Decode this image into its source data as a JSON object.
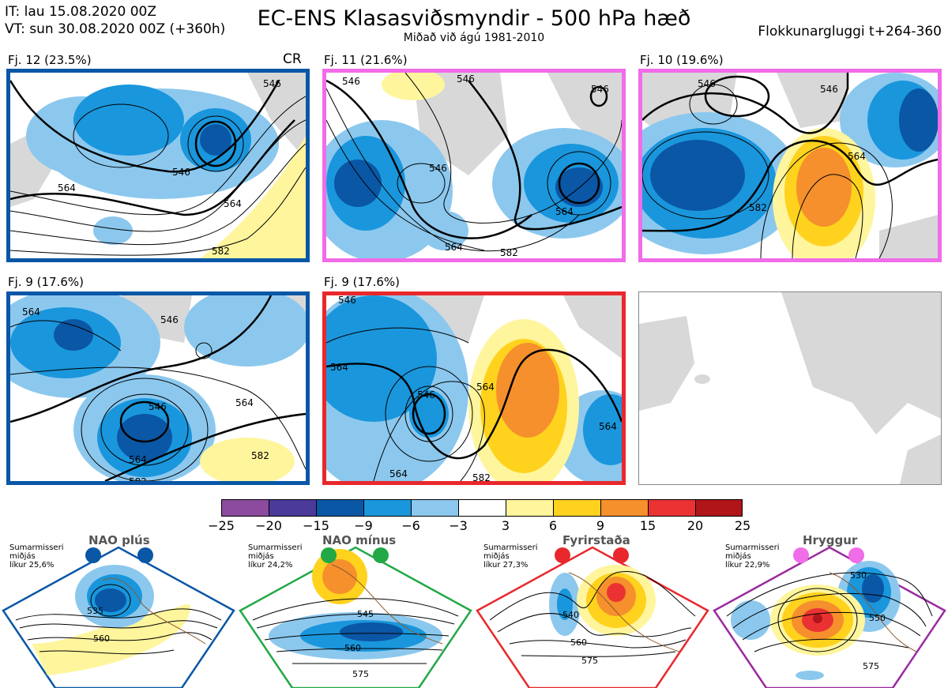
{
  "header": {
    "it_line": "IT: lau 15.08.2020 00Z",
    "vt_line": "VT: sun 30.08.2020 00Z  (+360h)",
    "title": "EC-ENS Klasasviðsmyndir - 500 hPa hæð",
    "subtitle": "Miðað við ágú 1981-2010",
    "window": "Flokkunargluggi t+264-360"
  },
  "panels": [
    {
      "label": "Fj. 12 (23.5%)",
      "tag": "CR",
      "border_color": "#0a57a6",
      "contours": [
        "546",
        "546",
        "564",
        "564",
        "582"
      ]
    },
    {
      "label": "Fj. 11 (21.6%)",
      "border_color": "#f06ce8",
      "contours": [
        "546",
        "546",
        "546",
        "546",
        "564",
        "564",
        "582"
      ]
    },
    {
      "label": "Fj. 10 (19.6%)",
      "border_color": "#f06ce8",
      "contours": [
        "546",
        "546",
        "564",
        "582"
      ]
    },
    {
      "label": "Fj. 9 (17.6%)",
      "border_color": "#0a57a6",
      "contours": [
        "564",
        "546",
        "546",
        "564",
        "564",
        "582",
        "582"
      ]
    },
    {
      "label": "Fj. 9 (17.6%)",
      "border_color": "#e8282d",
      "contours": [
        "546",
        "564",
        "546",
        "564",
        "564",
        "582",
        "564"
      ]
    }
  ],
  "colorbar": {
    "colors": [
      "#8c4b9e",
      "#4b3a9a",
      "#0a57a6",
      "#1a96dc",
      "#8cc8ee",
      "#ffffff",
      "#fff59d",
      "#ffd21e",
      "#f5902d",
      "#ea3232",
      "#b0151a"
    ],
    "ticks": [
      "−25",
      "−20",
      "−15",
      "−9",
      "−6",
      "−3",
      "3",
      "6",
      "9",
      "15",
      "20",
      "25"
    ]
  },
  "regimes": [
    {
      "name": "NAO plús",
      "season": "Sumarmisseri",
      "sub": "miðjás",
      "prob": "líkur 25,6%",
      "color": "#0a57a6",
      "contours": [
        "535",
        "560"
      ]
    },
    {
      "name": "NAO mínus",
      "season": "Sumarmisseri",
      "sub": "miðjás",
      "prob": "líkur 24,2%",
      "color": "#22a845",
      "contours": [
        "545",
        "560",
        "575"
      ]
    },
    {
      "name": "Fyrirstaða",
      "season": "Sumarmisseri",
      "sub": "miðjás",
      "prob": "líkur 27,3%",
      "color": "#e8282d",
      "contours": [
        "540",
        "560",
        "575"
      ]
    },
    {
      "name": "Hryggur",
      "season": "Sumarmisseri",
      "sub": "miðjás",
      "prob": "líkur 22,9%",
      "color": "#9a2a9e",
      "dot_color": "#f06ce8",
      "contours": [
        "530",
        "550",
        "575"
      ]
    }
  ]
}
